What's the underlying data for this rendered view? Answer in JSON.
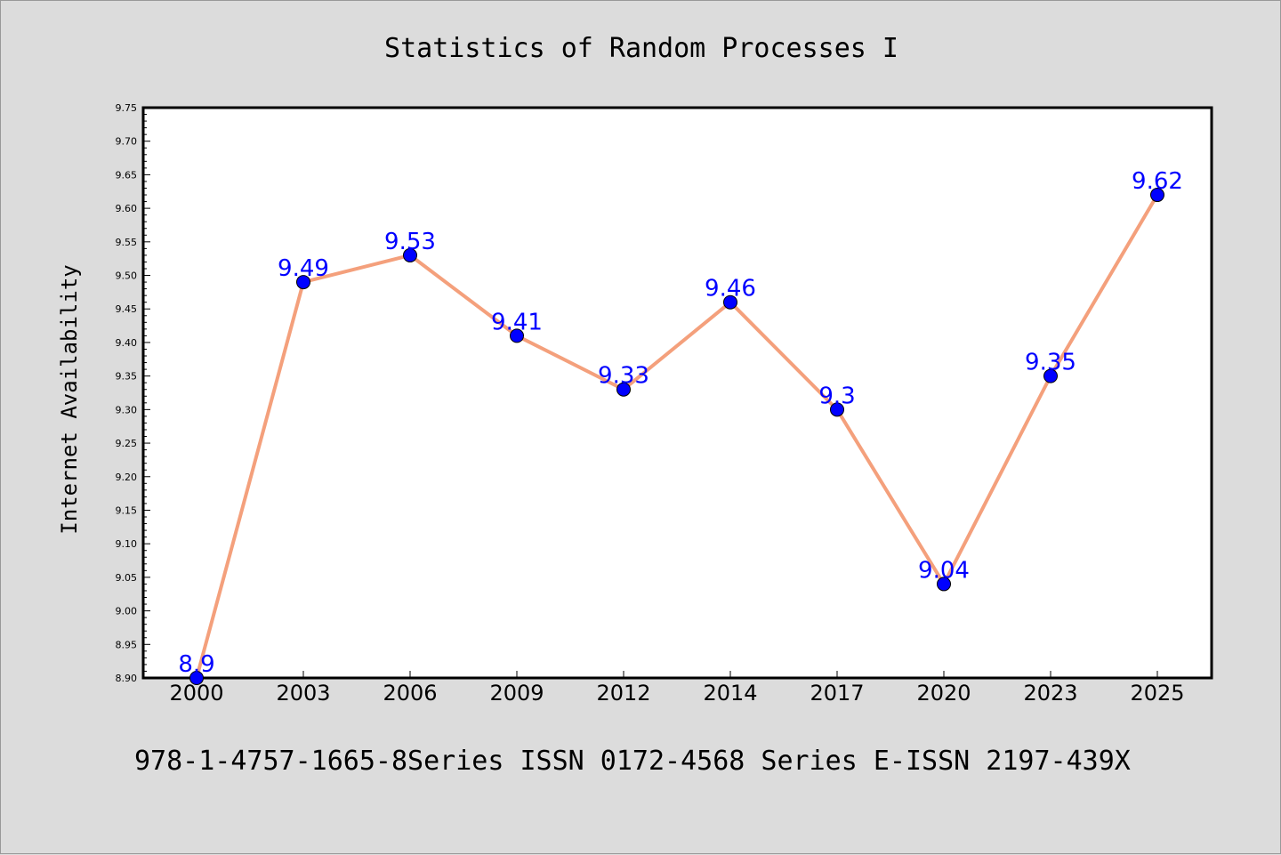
{
  "chart_data": {
    "type": "line",
    "title": "Statistics of Random Processes I",
    "xlabel": "",
    "ylabel": "Internet Availability",
    "categories": [
      "2000",
      "2003",
      "2006",
      "2009",
      "2012",
      "2014",
      "2017",
      "2020",
      "2023",
      "2025"
    ],
    "series": [
      {
        "values": [
          8.9,
          9.49,
          9.53,
          9.41,
          9.33,
          9.46,
          9.3,
          9.04,
          9.35,
          9.62
        ],
        "data_labels": [
          "8.9",
          "9.49",
          "9.53",
          "9.41",
          "9.33",
          "9.46",
          "9.3",
          "9.04",
          "9.35",
          "9.62"
        ],
        "line_color": "#f4a07c",
        "marker_color": "#0000ff"
      }
    ],
    "ylim": [
      8.9,
      9.75
    ],
    "yticks": [
      "8.90",
      "8.95",
      "9.00",
      "9.05",
      "9.10",
      "9.15",
      "9.20",
      "9.25",
      "9.30",
      "9.35",
      "9.40",
      "9.45",
      "9.50",
      "9.55",
      "9.60",
      "9.65",
      "9.70",
      "9.75"
    ],
    "grid": false,
    "legend": "none"
  },
  "footer": "978-1-4757-1665-8Series ISSN 0172-4568 Series E-ISSN 2197-439X"
}
